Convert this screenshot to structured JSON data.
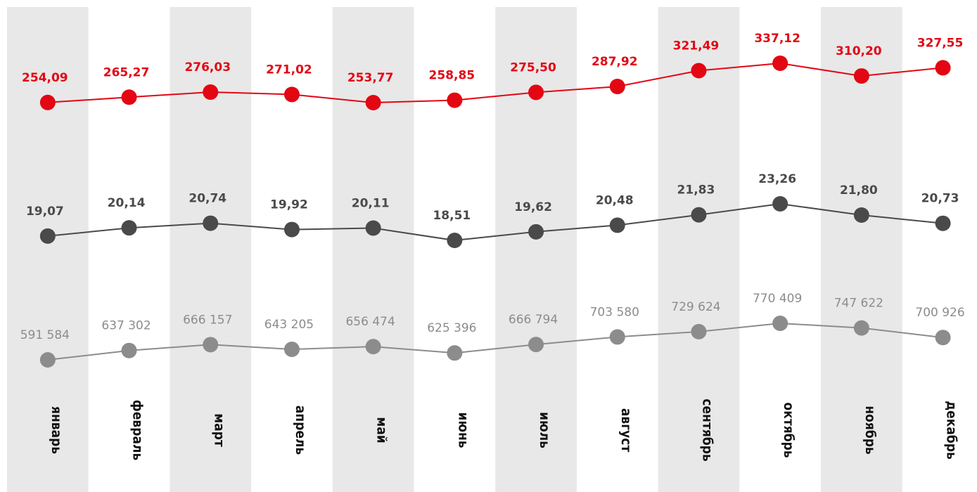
{
  "colors": {
    "band": "#e8e8e8",
    "red": "#e30613",
    "dark": "#4a4a4a",
    "light": "#8c8c8c"
  },
  "chart_data": {
    "type": "line",
    "categories": [
      "январь",
      "февраль",
      "март",
      "апрель",
      "май",
      "июнь",
      "июль",
      "август",
      "сентябрь",
      "октябрь",
      "ноябрь",
      "декабрь"
    ],
    "series": [
      {
        "values": [
          254.09,
          265.27,
          276.03,
          271.02,
          253.77,
          258.85,
          275.5,
          287.92,
          321.49,
          337.12,
          310.2,
          327.55
        ],
        "labels": [
          "254,09",
          "265,27",
          "276,03",
          "271,02",
          "253,77",
          "258,85",
          "275,50",
          "287,92",
          "321,49",
          "337,12",
          "310,20",
          "327,55"
        ],
        "color": "#e30613"
      },
      {
        "values": [
          19.07,
          20.14,
          20.74,
          19.92,
          20.11,
          18.51,
          19.62,
          20.48,
          21.83,
          23.26,
          21.8,
          20.73
        ],
        "labels": [
          "19,07",
          "20,14",
          "20,74",
          "19,92",
          "20,11",
          "18,51",
          "19,62",
          "20,48",
          "21,83",
          "23,26",
          "21,80",
          "20,73"
        ],
        "color": "#4a4a4a"
      },
      {
        "values": [
          591584,
          637302,
          666157,
          643205,
          656474,
          625396,
          666794,
          703580,
          729624,
          770409,
          747622,
          700926
        ],
        "labels": [
          "591 584",
          "637 302",
          "666 157",
          "643 205",
          "656 474",
          "625 396",
          "666 794",
          "703 580",
          "729 624",
          "770 409",
          "747 622",
          "700 926"
        ],
        "color": "#8c8c8c"
      }
    ],
    "grid": false,
    "legend": "none",
    "alternating_bands": true
  }
}
